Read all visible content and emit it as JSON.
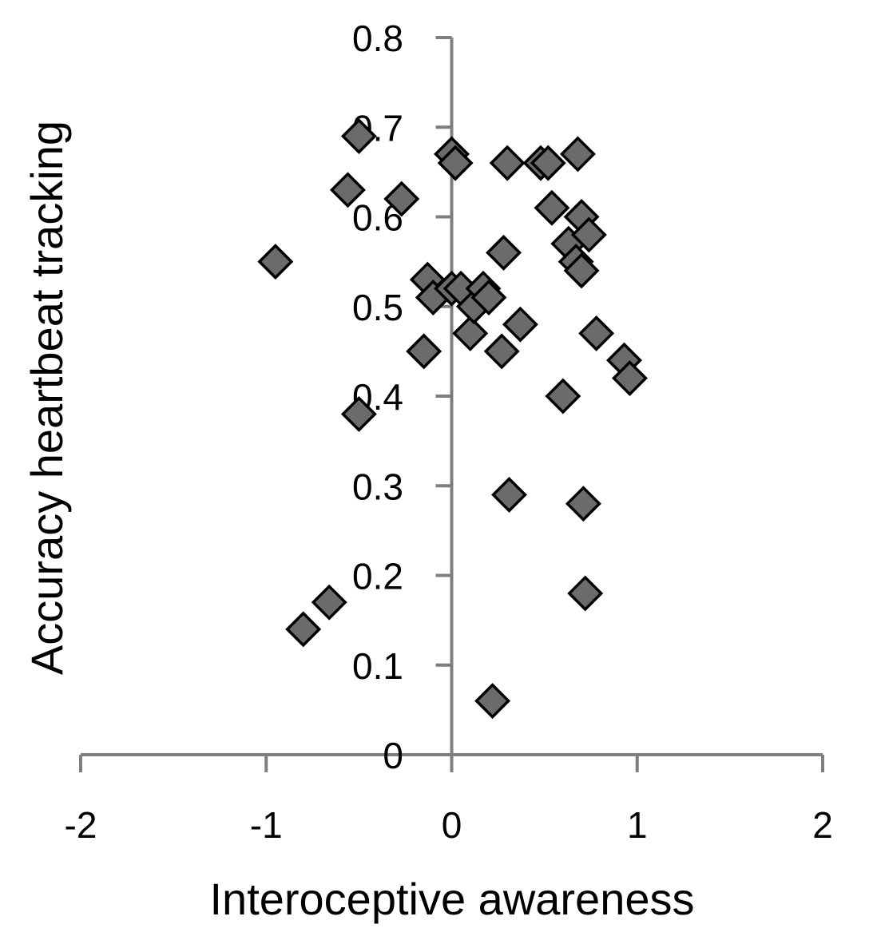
{
  "chart_data": {
    "type": "scatter",
    "title": "",
    "xlabel": "Interoceptive awareness",
    "ylabel": "Accuracy heartbeat tracking",
    "xlim": [
      -2,
      2
    ],
    "ylim": [
      0,
      0.8
    ],
    "xticks": [
      -2,
      -1,
      0,
      1,
      2
    ],
    "yticks": [
      0,
      0.1,
      0.2,
      0.3,
      0.4,
      0.5,
      0.6,
      0.7,
      0.8
    ],
    "xtick_labels": [
      "-2",
      "-1",
      "0",
      "1",
      "2"
    ],
    "ytick_labels": [
      "0",
      "0.1",
      "0.2",
      "0.3",
      "0.4",
      "0.5",
      "0.6",
      "0.7",
      "0.8"
    ],
    "marker": "diamond",
    "marker_color": "#6b6b6b",
    "axis_color": "#7f7f7f",
    "grid": false,
    "legend": false,
    "points": [
      {
        "x": -0.95,
        "y": 0.55
      },
      {
        "x": -0.8,
        "y": 0.14
      },
      {
        "x": -0.66,
        "y": 0.17
      },
      {
        "x": -0.56,
        "y": 0.63
      },
      {
        "x": -0.5,
        "y": 0.69
      },
      {
        "x": -0.5,
        "y": 0.38
      },
      {
        "x": -0.27,
        "y": 0.62
      },
      {
        "x": -0.15,
        "y": 0.45
      },
      {
        "x": -0.13,
        "y": 0.53
      },
      {
        "x": -0.1,
        "y": 0.51
      },
      {
        "x": 0.0,
        "y": 0.52
      },
      {
        "x": 0.0,
        "y": 0.67
      },
      {
        "x": 0.02,
        "y": 0.66
      },
      {
        "x": 0.05,
        "y": 0.52
      },
      {
        "x": 0.1,
        "y": 0.47
      },
      {
        "x": 0.12,
        "y": 0.5
      },
      {
        "x": 0.17,
        "y": 0.52
      },
      {
        "x": 0.2,
        "y": 0.51
      },
      {
        "x": 0.22,
        "y": 0.06
      },
      {
        "x": 0.27,
        "y": 0.45
      },
      {
        "x": 0.28,
        "y": 0.56
      },
      {
        "x": 0.3,
        "y": 0.66
      },
      {
        "x": 0.31,
        "y": 0.29
      },
      {
        "x": 0.37,
        "y": 0.48
      },
      {
        "x": 0.48,
        "y": 0.66
      },
      {
        "x": 0.52,
        "y": 0.66
      },
      {
        "x": 0.54,
        "y": 0.61
      },
      {
        "x": 0.6,
        "y": 0.4
      },
      {
        "x": 0.63,
        "y": 0.57
      },
      {
        "x": 0.67,
        "y": 0.55
      },
      {
        "x": 0.68,
        "y": 0.67
      },
      {
        "x": 0.7,
        "y": 0.6
      },
      {
        "x": 0.7,
        "y": 0.54
      },
      {
        "x": 0.71,
        "y": 0.28
      },
      {
        "x": 0.72,
        "y": 0.18
      },
      {
        "x": 0.74,
        "y": 0.58
      },
      {
        "x": 0.78,
        "y": 0.47
      },
      {
        "x": 0.93,
        "y": 0.44
      },
      {
        "x": 0.96,
        "y": 0.42
      }
    ]
  }
}
